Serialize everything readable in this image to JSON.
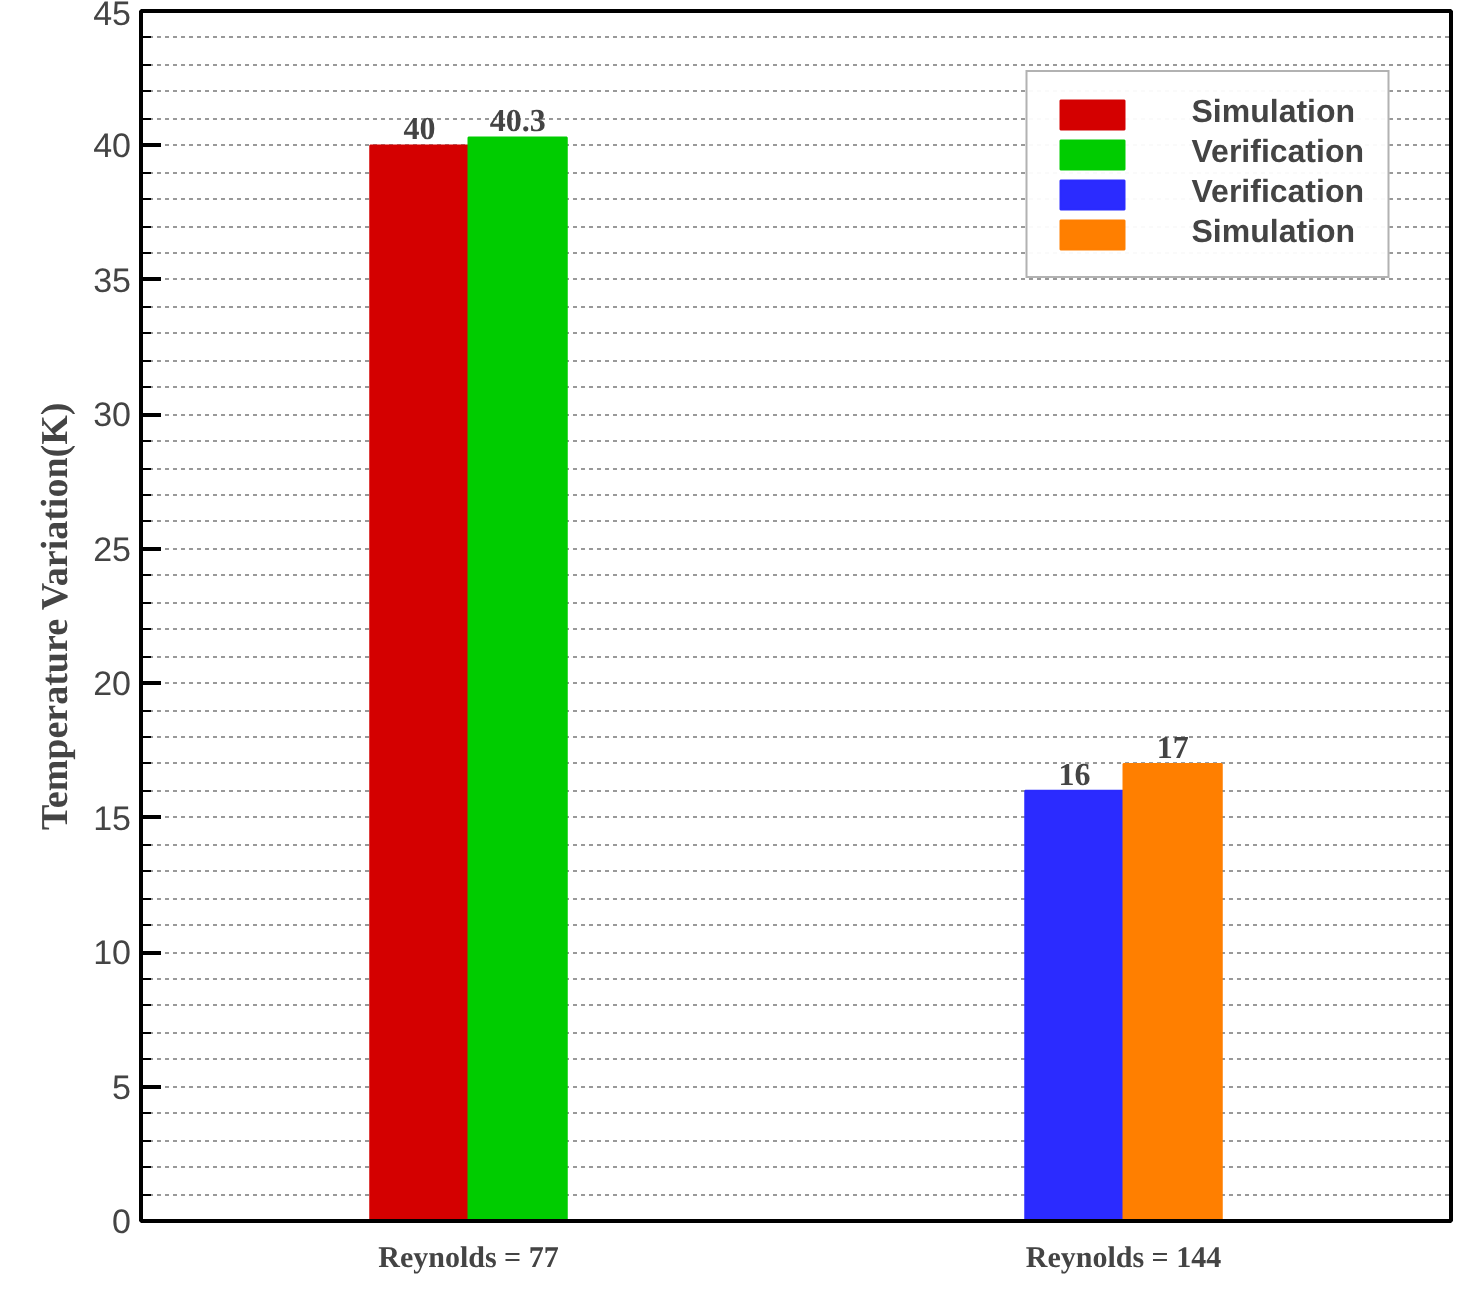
{
  "chart_data": {
    "type": "bar",
    "ylabel": "Temperature Variation(K)",
    "categories": [
      "Reynolds = 77",
      "Reynolds = 144"
    ],
    "series": [
      {
        "name": "Simulation",
        "color": "#d40000",
        "values": [
          40,
          null
        ]
      },
      {
        "name": "Verification",
        "color": "#00cc00",
        "values": [
          40.3,
          null
        ]
      },
      {
        "name": "Verification",
        "color": "#2b2bff",
        "values": [
          null,
          16
        ]
      },
      {
        "name": "Simulation",
        "color": "#ff7f00",
        "values": [
          null,
          17
        ]
      }
    ],
    "ylim": [
      0,
      45
    ],
    "yticks": [
      0,
      5,
      10,
      15,
      20,
      25,
      30,
      35,
      40,
      45
    ],
    "grid": "y",
    "legend": "top right",
    "data_labels": true
  }
}
